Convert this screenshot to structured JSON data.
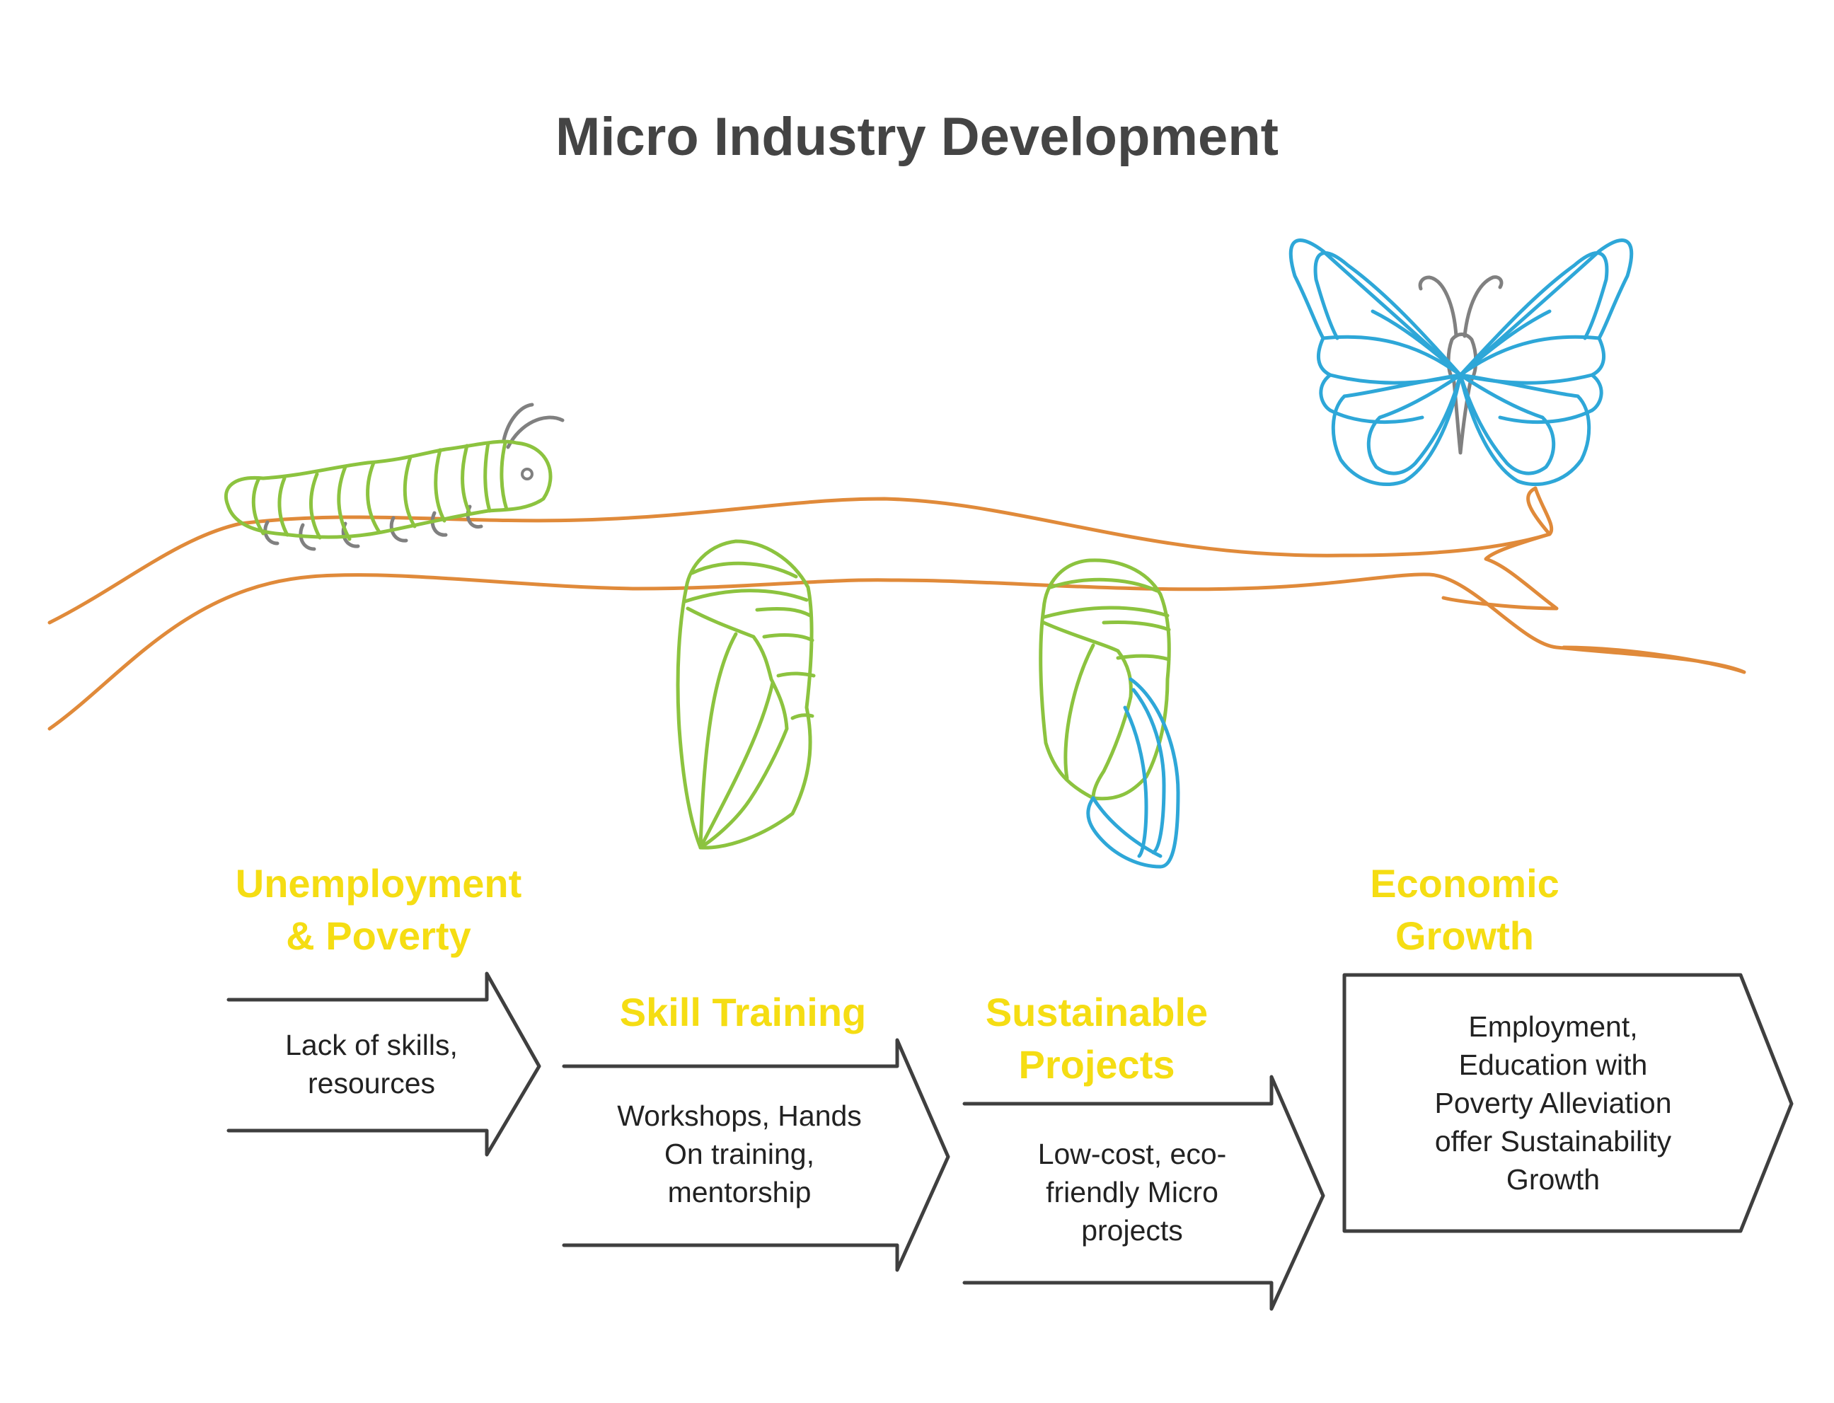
{
  "title": "Micro Industry Development",
  "colors": {
    "branch": "#e08a3a",
    "green": "#8cc33f",
    "blue": "#2ea7d8",
    "antenna": "#808080",
    "arrow": "#3f3f3f",
    "stage_title": "#f5dd13",
    "text": "#222222",
    "title": "#444444"
  },
  "stages": [
    {
      "title": "Unemployment\n& Poverty",
      "desc": "Lack of skills,\nresources"
    },
    {
      "title": "Skill Training",
      "desc": "Workshops, Hands\nOn training,\nmentorship"
    },
    {
      "title": "Sustainable\nProjects",
      "desc": "Low-cost, eco-\nfriendly Micro\nprojects"
    },
    {
      "title": "Economic\nGrowth",
      "desc": "Employment,\nEducation with\nPoverty Alleviation\noffer Sustainability\nGrowth"
    }
  ],
  "icons": [
    "caterpillar-icon",
    "chrysalis-icon",
    "emerging-chrysalis-icon",
    "butterfly-icon",
    "branch-illustration"
  ]
}
